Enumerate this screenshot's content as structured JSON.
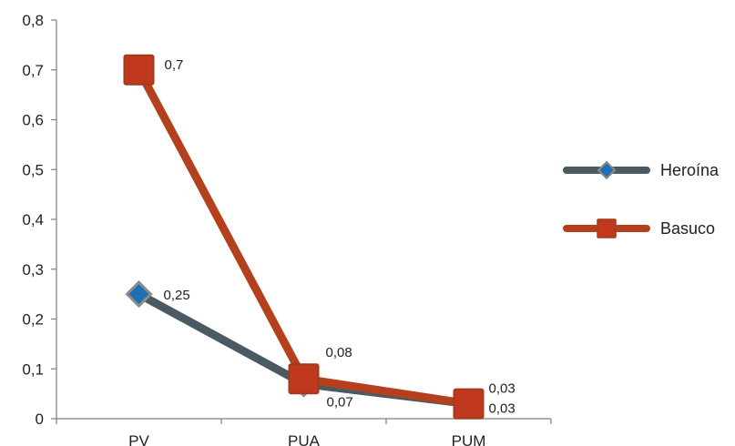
{
  "chart_data": {
    "type": "line",
    "categories": [
      "PV",
      "PUA",
      "PUM"
    ],
    "ylim": [
      0,
      0.8
    ],
    "yticks": [
      0,
      0.1,
      0.2,
      0.3,
      0.4,
      0.5,
      0.6,
      0.7,
      0.8
    ],
    "ytick_labels": [
      "0",
      "0,1",
      "0,2",
      "0,3",
      "0,4",
      "0,5",
      "0,6",
      "0,7",
      "0,8"
    ],
    "grid": false,
    "legend_position": "right",
    "series": [
      {
        "name": "Heroína",
        "values": [
          0.25,
          0.07,
          0.03
        ],
        "labels": [
          "0,25",
          "0,07",
          "0,03"
        ],
        "marker": "diamond",
        "line_color": "#4a5a63",
        "marker_fill": "#1f6fb2",
        "marker_edge": "#8c8c8c"
      },
      {
        "name": "Basuco",
        "values": [
          0.7,
          0.08,
          0.03
        ],
        "labels": [
          "0,7",
          "0,08",
          "0,03"
        ],
        "marker": "square",
        "line_color": "#b5401e",
        "marker_fill": "#c0391f",
        "marker_edge": "#a33a1e"
      }
    ]
  }
}
